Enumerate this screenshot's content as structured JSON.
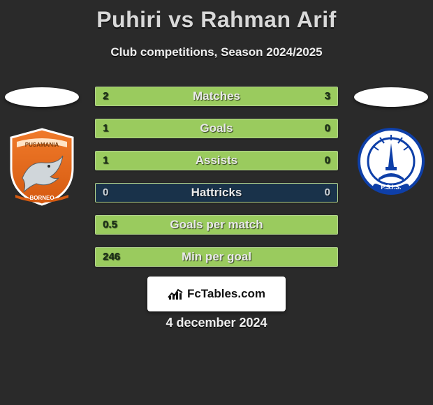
{
  "title": "Puhiri vs Rahman Arif",
  "subtitle": "Club competitions, Season 2024/2025",
  "date": "4 december 2024",
  "footer_brand": "FcTables.com",
  "colors": {
    "background": "#2a2a2a",
    "bar_fill": "#9acb5e",
    "bar_track": "#19324a",
    "bar_border": "#b4d58d",
    "text": "#e9e9e9"
  },
  "left_player": {
    "name": "Puhiri",
    "club": "Pusamania Borneo"
  },
  "right_player": {
    "name": "Rahman Arif",
    "club": "PSIS Semarang"
  },
  "stats": [
    {
      "label": "Matches",
      "left_val": "2",
      "right_val": "3",
      "left_pct": 40,
      "right_pct": 60
    },
    {
      "label": "Goals",
      "left_val": "1",
      "right_val": "0",
      "left_pct": 77,
      "right_pct": 23
    },
    {
      "label": "Assists",
      "left_val": "1",
      "right_val": "0",
      "left_pct": 77,
      "right_pct": 23
    },
    {
      "label": "Hattricks",
      "left_val": "0",
      "right_val": "0",
      "left_pct": 0,
      "right_pct": 0
    },
    {
      "label": "Goals per match",
      "left_val": "0.5",
      "right_val": "",
      "left_pct": 100,
      "right_pct": 0
    },
    {
      "label": "Min per goal",
      "left_val": "246",
      "right_val": "",
      "left_pct": 100,
      "right_pct": 0
    }
  ]
}
